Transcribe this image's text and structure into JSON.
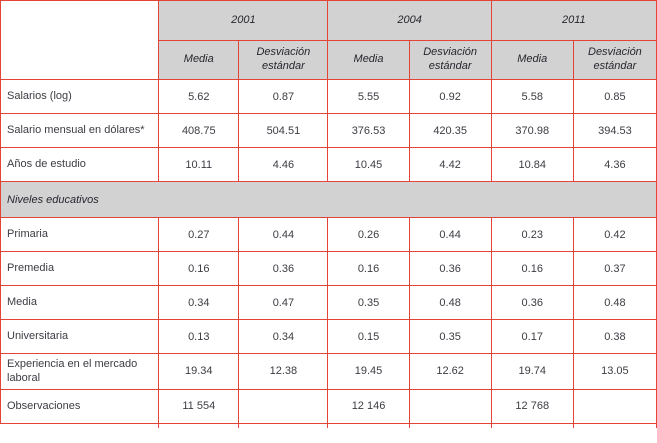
{
  "colors": {
    "border_red": "#E4433A",
    "header_gray": "#D2D2D2",
    "text": "#3C3C43"
  },
  "table": {
    "years": [
      "2001",
      "2004",
      "2011"
    ],
    "subheaders": {
      "media": "Media",
      "sd": "Desviación estándar"
    },
    "rows": [
      {
        "label": "Salarios (log)",
        "values": [
          "5.62",
          "0.87",
          "5.55",
          "0.92",
          "5.58",
          "0.85"
        ]
      },
      {
        "label": "Salario mensual en dólares*",
        "values": [
          "408.75",
          "504.51",
          "376.53",
          "420.35",
          "370.98",
          "394.53"
        ]
      },
      {
        "label": "Años de estudio",
        "values": [
          "10.11",
          "4.46",
          "10.45",
          "4.42",
          "10.84",
          "4.36"
        ]
      },
      {
        "section": "Niveles educativos"
      },
      {
        "label": "Primaria",
        "values": [
          "0.27",
          "0.44",
          "0.26",
          "0.44",
          "0.23",
          "0.42"
        ]
      },
      {
        "label": "Premedia",
        "values": [
          "0.16",
          "0.36",
          "0.16",
          "0.36",
          "0.16",
          "0.37"
        ]
      },
      {
        "label": "Media",
        "values": [
          "0.34",
          "0.47",
          "0.35",
          "0.48",
          "0.36",
          "0.48"
        ]
      },
      {
        "label": "Universitaria",
        "values": [
          "0.13",
          "0.34",
          "0.15",
          "0.35",
          "0.17",
          "0.38"
        ]
      },
      {
        "label": "Experiencia en el mercado laboral",
        "values": [
          "19.34",
          "12.38",
          "19.45",
          "12.62",
          "19.74",
          "13.05"
        ]
      },
      {
        "label": "Observaciones",
        "values": [
          "11 554",
          "",
          "12 146",
          "",
          "12 768",
          ""
        ]
      }
    ]
  }
}
